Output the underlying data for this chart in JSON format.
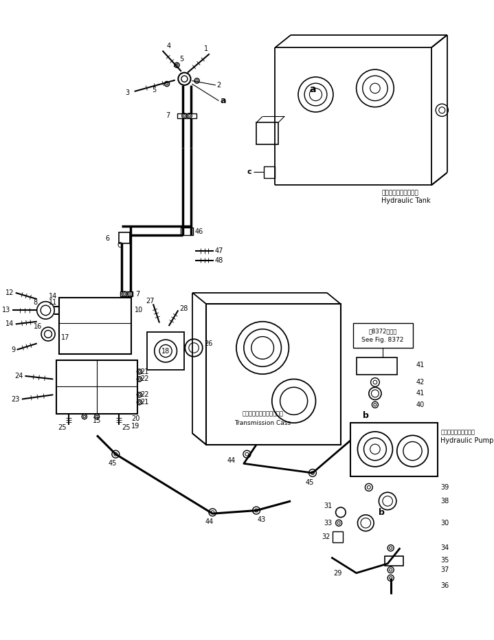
{
  "bg_color": "#ffffff",
  "line_color": "#000000",
  "fig_width": 7.19,
  "fig_height": 9.31,
  "dpi": 100,
  "labels": {
    "hydraulic_tank_jp": "ハイドロリックタンク",
    "hydraulic_tank_en": "Hydraulic Tank",
    "hydraulic_pump_jp": "ハイドロリックポンプ",
    "hydraulic_pump_en": "Hydraulic Pump",
    "transmission_jp": "トランスミッションケース",
    "transmission_en": "Transmission Cass",
    "see_fig_jp": "第8372図参照",
    "see_fig_en": "See Fig. 8372"
  }
}
